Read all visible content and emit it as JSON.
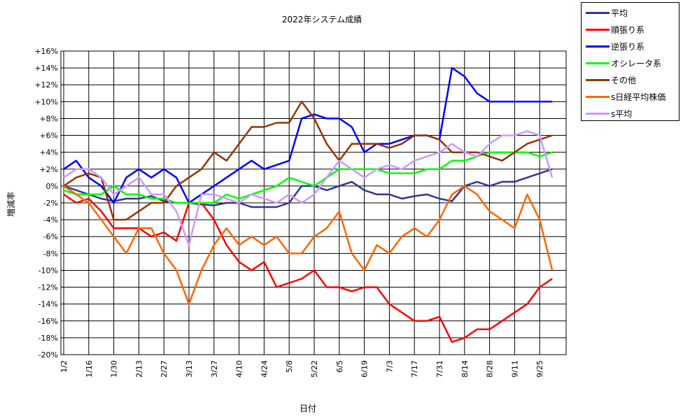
{
  "chart_data": {
    "type": "line",
    "title": "2022年システム成績",
    "xlabel": "日付",
    "ylabel": "増減率",
    "ylim": [
      -20,
      16
    ],
    "y_ticks": [
      "+16%",
      "+14%",
      "+12%",
      "+10%",
      "+8%",
      "+6%",
      "+4%",
      "+2%",
      "0%",
      "-2%",
      "-4%",
      "-6%",
      "-8%",
      "-10%",
      "-12%",
      "-14%",
      "-16%",
      "-18%",
      "-20%"
    ],
    "x_ticks": [
      "1/2",
      "1/16",
      "1/30",
      "2/13",
      "2/27",
      "3/13",
      "3/27",
      "4/10",
      "4/24",
      "5/8",
      "5/22",
      "6/5",
      "6/19",
      "7/3",
      "7/17",
      "7/31",
      "8/14",
      "8/28",
      "9/11",
      "9/25"
    ],
    "x": [
      "1/2",
      "1/9",
      "1/16",
      "1/23",
      "1/30",
      "2/6",
      "2/13",
      "2/20",
      "2/27",
      "3/6",
      "3/13",
      "3/20",
      "3/27",
      "4/3",
      "4/10",
      "4/17",
      "4/24",
      "5/1",
      "5/8",
      "5/15",
      "5/22",
      "5/29",
      "6/5",
      "6/12",
      "6/19",
      "6/26",
      "7/3",
      "7/10",
      "7/17",
      "7/24",
      "7/31",
      "8/7",
      "8/14",
      "8/21",
      "8/28",
      "9/4",
      "9/11",
      "9/18",
      "9/25",
      "10/2"
    ],
    "grid": true,
    "legend_position": "right",
    "series": [
      {
        "name": "平均",
        "color": "#333399",
        "values": [
          0,
          -0.5,
          -1,
          -1.5,
          -1.8,
          -1.5,
          -1.5,
          -1.2,
          -1.8,
          -2,
          -2,
          -2.2,
          -2.3,
          -2,
          -2,
          -2.5,
          -2.5,
          -2.5,
          -2,
          0,
          0,
          -0.5,
          0,
          0.5,
          -0.5,
          -1,
          -1,
          -1.5,
          -1.2,
          -1,
          -1.5,
          -1.8,
          0,
          0.5,
          0,
          0.5,
          0.5,
          1,
          1.5,
          2
        ]
      },
      {
        "name": "順張り系",
        "color": "#ff0000",
        "values": [
          -1,
          -2,
          -1.5,
          -3,
          -5,
          -5,
          -5,
          -6,
          -5.5,
          -6.5,
          -2,
          -2,
          -4,
          -7,
          -9,
          -10,
          -9,
          -12,
          -11.5,
          -11,
          -10,
          -12,
          -12,
          -12.5,
          -12,
          -12,
          -14,
          -15,
          -16,
          -16,
          -15.5,
          -18.5,
          -18,
          -17,
          -17,
          -16,
          -15,
          -14,
          -12,
          -11
        ]
      },
      {
        "name": "逆張り系",
        "color": "#0000ff",
        "values": [
          2,
          3,
          1,
          0,
          -2,
          1,
          2,
          1,
          2,
          1,
          -2,
          -1,
          0,
          1,
          2,
          3,
          2,
          2.5,
          3,
          8,
          8.5,
          8,
          8,
          7,
          4,
          5,
          5,
          5.5,
          6,
          6,
          5.5,
          14,
          13,
          11,
          10,
          10,
          10,
          10,
          10,
          10
        ]
      },
      {
        "name": "オシレータ系",
        "color": "#00ff00",
        "values": [
          -0.5,
          -1,
          -1,
          -1,
          0,
          -1,
          -1,
          -1.5,
          -1.5,
          -2,
          -2,
          -2,
          -2,
          -1,
          -1.5,
          -1,
          -0.5,
          0,
          1,
          0.5,
          0,
          1,
          2,
          2,
          2,
          2,
          1.5,
          1.5,
          1.5,
          2,
          2,
          3,
          3,
          3.5,
          4,
          4,
          4,
          4,
          3.5,
          4
        ]
      },
      {
        "name": "その他",
        "color": "#993300",
        "values": [
          0,
          1,
          1.5,
          1,
          -4,
          -4,
          -3,
          -2,
          -2,
          0,
          1,
          2,
          4,
          3,
          5,
          7,
          7,
          7.5,
          7.5,
          10,
          8,
          5,
          3,
          5,
          5,
          5,
          4.5,
          5,
          6,
          6,
          5.5,
          4,
          4,
          4,
          3.5,
          3,
          4,
          5,
          5.5,
          6
        ]
      },
      {
        "name": "s日経平均株価",
        "color": "#ff6600",
        "values": [
          0,
          -1,
          -2,
          -4,
          -6,
          -8,
          -5,
          -5,
          -8,
          -10,
          -14,
          -10,
          -7,
          -5,
          -7,
          -6,
          -7,
          -6,
          -8,
          -8,
          -6,
          -5,
          -3,
          -8,
          -10,
          -7,
          -8,
          -6,
          -5,
          -6,
          -4,
          -1,
          0,
          -1,
          -3,
          -4,
          -5,
          -1,
          -4,
          -10
        ]
      },
      {
        "name": "s平均",
        "color": "#cc99ff",
        "values": [
          1,
          2,
          2,
          1,
          -1,
          0,
          1,
          -1,
          -1,
          -3,
          -7,
          -1,
          -1,
          -1.5,
          -2,
          -1,
          -1.5,
          -2,
          -1,
          -2,
          -1,
          1,
          3,
          2,
          1,
          2,
          2.5,
          2,
          3,
          3.5,
          4,
          5,
          4,
          3.5,
          5,
          6,
          6,
          6.5,
          6,
          1
        ]
      }
    ]
  }
}
